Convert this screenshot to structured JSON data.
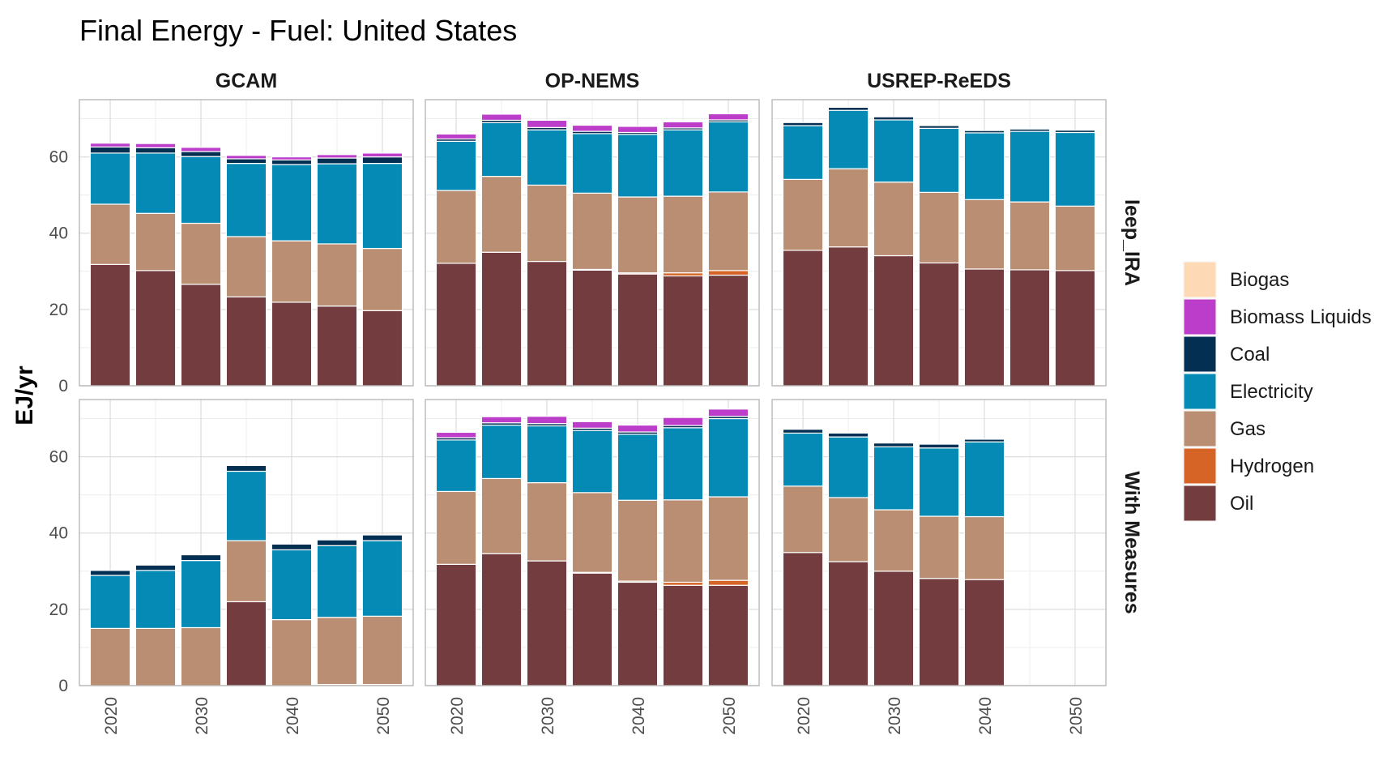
{
  "chart_data": {
    "type": "bar",
    "stacked": true,
    "title": "Final Energy - Fuel: United States",
    "ylabel": "EJ/yr",
    "xlabel": "",
    "ylim": [
      0,
      75
    ],
    "yticks": [
      0,
      20,
      40,
      60
    ],
    "xticks": [
      2020,
      2030,
      2040,
      2050
    ],
    "x": [
      2020,
      2025,
      2030,
      2035,
      2040,
      2045,
      2050
    ],
    "columns": [
      "GCAM",
      "OP-NEMS",
      "USREP-ReEDS"
    ],
    "rows": [
      "Ieep_IRA",
      "With Measures"
    ],
    "grid": true,
    "legend_position": "right",
    "stack_order": [
      "Oil",
      "Hydrogen",
      "Gas",
      "Electricity",
      "Coal",
      "Biomass Liquids",
      "Biogas"
    ],
    "legend": [
      {
        "name": "Biogas",
        "color": "#FDD9B5"
      },
      {
        "name": "Biomass Liquids",
        "color": "#BB3DC9"
      },
      {
        "name": "Coal",
        "color": "#032F52"
      },
      {
        "name": "Electricity",
        "color": "#058AB5"
      },
      {
        "name": "Gas",
        "color": "#BA8E72"
      },
      {
        "name": "Hydrogen",
        "color": "#D56426"
      },
      {
        "name": "Oil",
        "color": "#733C3E"
      }
    ],
    "panels": [
      {
        "column": "GCAM",
        "row": "Ieep_IRA",
        "series": [
          {
            "name": "Oil",
            "values": [
              31.8,
              30.2,
              26.6,
              23.3,
              21.9,
              20.9,
              19.7
            ]
          },
          {
            "name": "Hydrogen",
            "values": [
              0,
              0,
              0,
              0,
              0,
              0,
              0
            ]
          },
          {
            "name": "Gas",
            "values": [
              15.8,
              15.0,
              16.0,
              15.8,
              16.1,
              16.3,
              16.3
            ]
          },
          {
            "name": "Electricity",
            "values": [
              13.4,
              15.8,
              17.5,
              19.2,
              20.0,
              21.0,
              22.3
            ]
          },
          {
            "name": "Coal",
            "values": [
              1.6,
              1.4,
              1.3,
              1.2,
              1.2,
              1.5,
              1.7
            ]
          },
          {
            "name": "Biomass Liquids",
            "values": [
              1.0,
              1.1,
              1.1,
              0.9,
              0.8,
              0.9,
              1.0
            ]
          },
          {
            "name": "Biogas",
            "values": [
              0,
              0,
              0,
              0,
              0,
              0,
              0
            ]
          }
        ]
      },
      {
        "column": "OP-NEMS",
        "row": "Ieep_IRA",
        "series": [
          {
            "name": "Oil",
            "values": [
              32.1,
              35.0,
              32.6,
              30.3,
              29.3,
              28.8,
              29.0
            ]
          },
          {
            "name": "Hydrogen",
            "values": [
              0,
              0,
              0,
              0.2,
              0.3,
              0.8,
              1.2
            ]
          },
          {
            "name": "Gas",
            "values": [
              19.1,
              19.9,
              20.0,
              20.0,
              19.9,
              20.1,
              20.6
            ]
          },
          {
            "name": "Electricity",
            "values": [
              12.9,
              14.1,
              14.5,
              15.6,
              16.4,
              17.4,
              18.4
            ]
          },
          {
            "name": "Coal",
            "values": [
              0.6,
              0.6,
              0.6,
              0.6,
              0.5,
              0.5,
              0.5
            ]
          },
          {
            "name": "Biomass Liquids",
            "values": [
              1.3,
              1.6,
              1.9,
              1.6,
              1.6,
              1.6,
              1.6
            ]
          },
          {
            "name": "Biogas",
            "values": [
              0,
              0,
              0,
              0,
              0,
              0,
              0
            ]
          }
        ]
      },
      {
        "column": "USREP-ReEDS",
        "row": "Ieep_IRA",
        "series": [
          {
            "name": "Oil",
            "values": [
              35.5,
              36.4,
              34.1,
              32.2,
              30.6,
              30.4,
              30.2
            ]
          },
          {
            "name": "Hydrogen",
            "values": [
              0,
              0,
              0,
              0,
              0,
              0,
              0
            ]
          },
          {
            "name": "Gas",
            "values": [
              18.6,
              20.5,
              19.3,
              18.5,
              18.2,
              17.8,
              16.9
            ]
          },
          {
            "name": "Electricity",
            "values": [
              14.1,
              15.3,
              16.3,
              16.8,
              17.5,
              18.5,
              19.3
            ]
          },
          {
            "name": "Coal",
            "values": [
              0.8,
              0.8,
              0.8,
              0.7,
              0.6,
              0.6,
              0.6
            ]
          },
          {
            "name": "Biomass Liquids",
            "values": [
              0,
              0,
              0,
              0,
              0,
              0,
              0
            ]
          },
          {
            "name": "Biogas",
            "values": [
              0,
              0,
              0,
              0,
              0,
              0,
              0
            ]
          }
        ]
      },
      {
        "column": "GCAM",
        "row": "With Measures",
        "series": [
          {
            "name": "Oil",
            "values": [
              0,
              0,
              0,
              22.0,
              0,
              0,
              0
            ]
          },
          {
            "name": "Hydrogen",
            "values": [
              0,
              0,
              0,
              0,
              0,
              0.3,
              0.3
            ]
          },
          {
            "name": "Gas",
            "values": [
              15.0,
              15.0,
              15.2,
              16.0,
              17.3,
              17.6,
              17.9
            ]
          },
          {
            "name": "Electricity",
            "values": [
              13.9,
              15.2,
              17.6,
              18.2,
              18.3,
              18.8,
              19.8
            ]
          },
          {
            "name": "Coal",
            "values": [
              1.3,
              1.4,
              1.5,
              1.5,
              1.5,
              1.5,
              1.5
            ]
          },
          {
            "name": "Biomass Liquids",
            "values": [
              0,
              0,
              0,
              0,
              0,
              0,
              0
            ]
          },
          {
            "name": "Biogas",
            "values": [
              0,
              0,
              0,
              0,
              0,
              0,
              0
            ]
          }
        ]
      },
      {
        "column": "OP-NEMS",
        "row": "With Measures",
        "series": [
          {
            "name": "Oil",
            "values": [
              31.8,
              34.6,
              32.7,
              29.5,
              27.1,
              26.3,
              26.3
            ]
          },
          {
            "name": "Hydrogen",
            "values": [
              0,
              0,
              0,
              0.2,
              0.3,
              0.8,
              1.3
            ]
          },
          {
            "name": "Gas",
            "values": [
              19.1,
              19.7,
              20.5,
              20.9,
              21.2,
              21.6,
              21.9
            ]
          },
          {
            "name": "Electricity",
            "values": [
              13.5,
              14.0,
              14.9,
              16.3,
              17.3,
              18.9,
              20.5
            ]
          },
          {
            "name": "Coal",
            "values": [
              0.6,
              0.6,
              0.6,
              0.6,
              0.6,
              0.6,
              0.6
            ]
          },
          {
            "name": "Biomass Liquids",
            "values": [
              1.4,
              1.6,
              1.9,
              1.7,
              1.8,
              2.1,
              1.9
            ]
          },
          {
            "name": "Biogas",
            "values": [
              0,
              0,
              0,
              0,
              0,
              0,
              0
            ]
          }
        ]
      },
      {
        "column": "USREP-ReEDS",
        "row": "With Measures",
        "series": [
          {
            "name": "Oil",
            "values": [
              34.9,
              32.5,
              30.0,
              28.1,
              27.8,
              null,
              null
            ]
          },
          {
            "name": "Hydrogen",
            "values": [
              0,
              0,
              0,
              0,
              0,
              null,
              null
            ]
          },
          {
            "name": "Gas",
            "values": [
              17.4,
              16.8,
              16.1,
              16.3,
              16.5,
              null,
              null
            ]
          },
          {
            "name": "Electricity",
            "values": [
              13.9,
              15.9,
              16.5,
              17.9,
              19.6,
              null,
              null
            ]
          },
          {
            "name": "Coal",
            "values": [
              1.0,
              1.0,
              1.0,
              1.0,
              0.7,
              null,
              null
            ]
          },
          {
            "name": "Biomass Liquids",
            "values": [
              0,
              0,
              0,
              0,
              0,
              null,
              null
            ]
          },
          {
            "name": "Biogas",
            "values": [
              0,
              0,
              0,
              0,
              0,
              null,
              null
            ]
          }
        ]
      }
    ]
  }
}
